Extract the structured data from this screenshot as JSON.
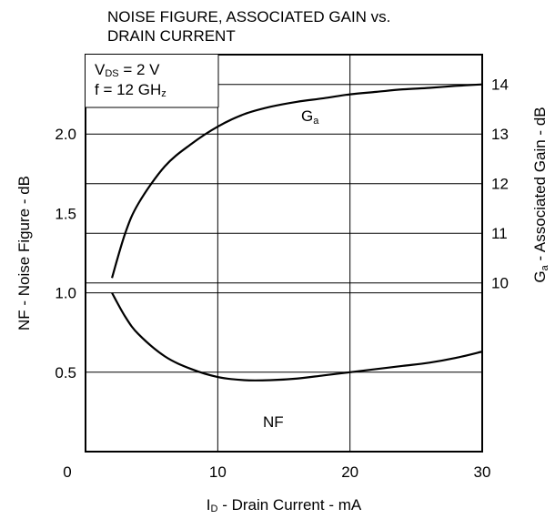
{
  "chart_data": {
    "type": "line",
    "title_line1": "NOISE FIGURE, ASSOCIATED GAIN vs.",
    "title_line2": "DRAIN CURRENT",
    "xlabel": {
      "main": "I",
      "sub": "D",
      "rest": " - Drain Current - mA"
    },
    "ylabel_left": "NF - Noise Figure - dB",
    "ylabel_right": {
      "main": "G",
      "sub": "a",
      "rest": " - Associated Gain - dB"
    },
    "xlim": [
      0,
      30
    ],
    "x_ticks": [
      "0",
      "10",
      "20",
      "30"
    ],
    "ylim_left": [
      0,
      2.5
    ],
    "y_ticks_left": [
      "0.5",
      "1.0",
      "1.5",
      "2.0"
    ],
    "ylim_right": [
      6.6,
      14.6
    ],
    "y_ticks_right": [
      "10",
      "11",
      "12",
      "13",
      "14"
    ],
    "grid": true,
    "conditions": {
      "line1": {
        "main": "V",
        "sub": "DS",
        "rest": " = 2 V"
      },
      "line2": {
        "main": "f = 12 GH",
        "sub": "z",
        "rest": ""
      }
    },
    "series": [
      {
        "name": "NF",
        "axis": "left",
        "label": {
          "main": "NF",
          "sub": ""
        },
        "x": [
          2,
          3,
          4,
          6,
          8,
          10,
          12,
          14,
          16,
          18,
          20,
          22,
          24,
          26,
          28,
          30
        ],
        "y": [
          1.0,
          0.85,
          0.74,
          0.6,
          0.52,
          0.47,
          0.45,
          0.45,
          0.46,
          0.48,
          0.5,
          0.52,
          0.54,
          0.56,
          0.59,
          0.63
        ]
      },
      {
        "name": "Ga",
        "axis": "right",
        "label": {
          "main": "G",
          "sub": "a"
        },
        "x": [
          2,
          3,
          4,
          6,
          8,
          10,
          12,
          14,
          16,
          18,
          20,
          22,
          24,
          26,
          28,
          30
        ],
        "y": [
          10.1,
          11.0,
          11.6,
          12.35,
          12.8,
          13.15,
          13.4,
          13.55,
          13.65,
          13.72,
          13.8,
          13.85,
          13.9,
          13.93,
          13.97,
          14.0
        ]
      }
    ]
  }
}
